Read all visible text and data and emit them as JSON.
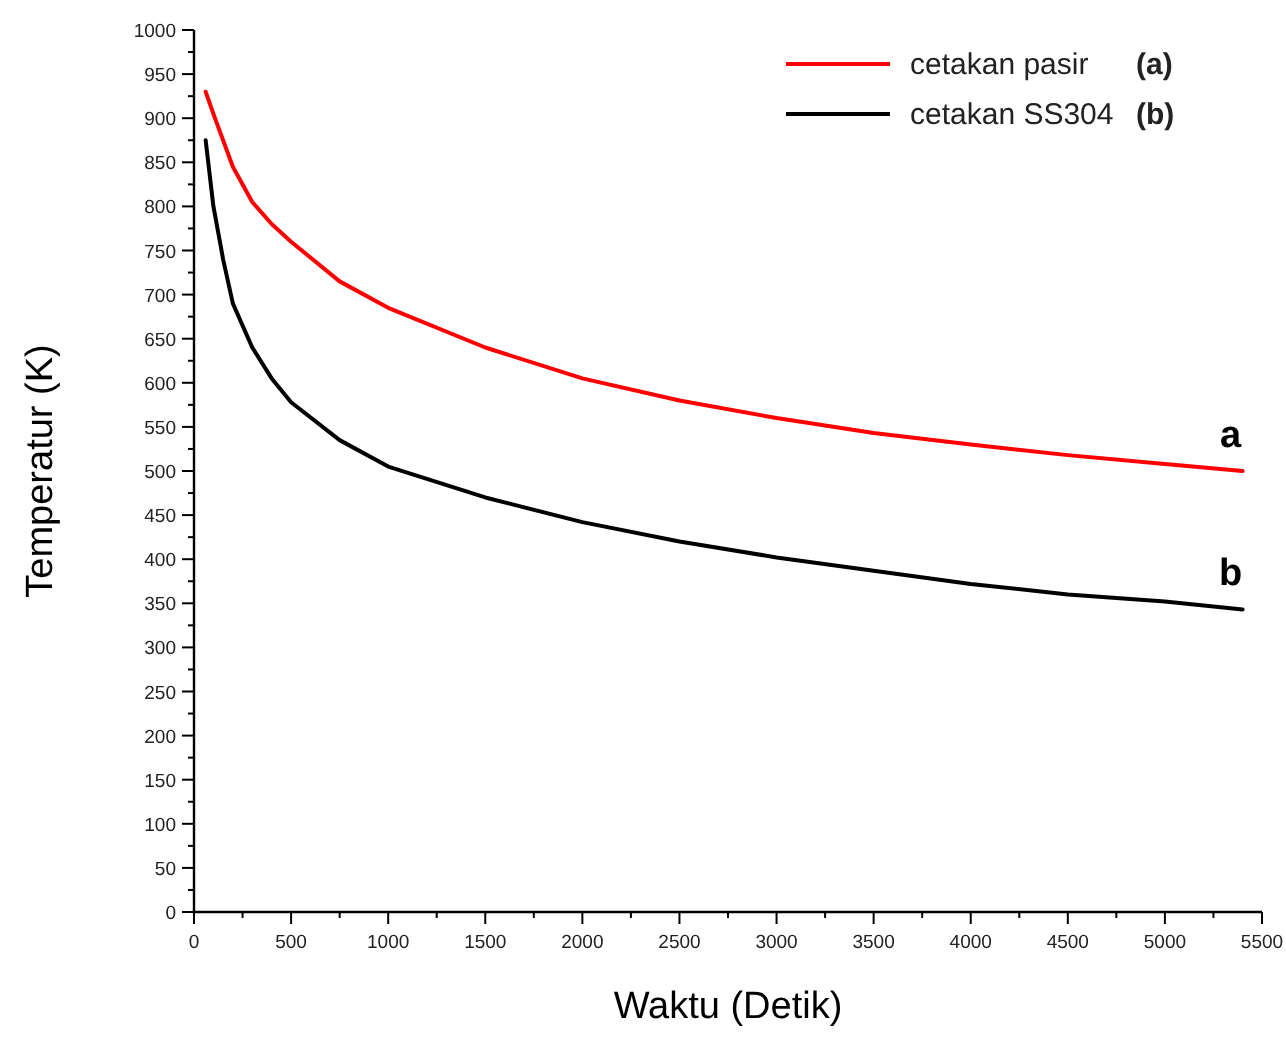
{
  "chart_data": {
    "type": "line",
    "xlabel": "Waktu (Detik)",
    "ylabel": "Temperatur (K)",
    "xlim": [
      0,
      5500
    ],
    "ylim": [
      0,
      1000
    ],
    "xticks": [
      0,
      {
        "value": 250,
        "label": null
      },
      500,
      {
        "value": 750,
        "label": null
      },
      1000,
      {
        "value": 1250,
        "label": null
      },
      1500,
      {
        "value": 1750,
        "label": null
      },
      2000,
      {
        "value": 2250,
        "label": null
      },
      2500,
      {
        "value": 2750,
        "label": null
      },
      3000,
      {
        "value": 3250,
        "label": null
      },
      3500,
      {
        "value": 3750,
        "label": null
      },
      4000,
      {
        "value": 4250,
        "label": null
      },
      4500,
      {
        "value": 4750,
        "label": null
      },
      5000,
      {
        "value": 5250,
        "label": null
      },
      5500
    ],
    "yticks": [
      0,
      {
        "value": 25,
        "label": null
      },
      50,
      {
        "value": 75,
        "label": null
      },
      100,
      {
        "value": 125,
        "label": null
      },
      150,
      {
        "value": 175,
        "label": null
      },
      200,
      {
        "value": 225,
        "label": null
      },
      250,
      {
        "value": 275,
        "label": null
      },
      300,
      {
        "value": 325,
        "label": null
      },
      350,
      {
        "value": 375,
        "label": null
      },
      400,
      {
        "value": 425,
        "label": null
      },
      450,
      {
        "value": 475,
        "label": null
      },
      500,
      {
        "value": 525,
        "label": null
      },
      550,
      {
        "value": 575,
        "label": null
      },
      600,
      {
        "value": 625,
        "label": null
      },
      650,
      {
        "value": 675,
        "label": null
      },
      700,
      {
        "value": 725,
        "label": null
      },
      750,
      {
        "value": 775,
        "label": null
      },
      800,
      {
        "value": 825,
        "label": null
      },
      850,
      {
        "value": 875,
        "label": null
      },
      900,
      {
        "value": 925,
        "label": null
      },
      950,
      {
        "value": 975,
        "label": null
      },
      1000
    ],
    "grid": false,
    "legend": "top right",
    "line_style": "solid",
    "annotations": [
      "(a)",
      "(b)",
      "a",
      "b"
    ],
    "series": [
      {
        "name": "cetakan pasir",
        "color": "#ff0000",
        "x": [
          60,
          100,
          200,
          300,
          400,
          500,
          750,
          1000,
          1500,
          2000,
          2500,
          3000,
          3500,
          4000,
          4500,
          5000,
          5400
        ],
        "values": [
          930,
          905,
          845,
          805,
          780,
          760,
          715,
          685,
          640,
          605,
          580,
          560,
          543,
          530,
          518,
          508,
          500
        ]
      },
      {
        "name": "cetakan SS304",
        "color": "#000000",
        "x": [
          60,
          100,
          150,
          200,
          300,
          400,
          500,
          750,
          1000,
          1500,
          2000,
          2500,
          3000,
          3500,
          4000,
          4500,
          5000,
          5400
        ],
        "values": [
          875,
          800,
          740,
          690,
          640,
          605,
          578,
          535,
          505,
          470,
          442,
          420,
          402,
          387,
          372,
          360,
          352,
          343
        ]
      }
    ]
  }
}
